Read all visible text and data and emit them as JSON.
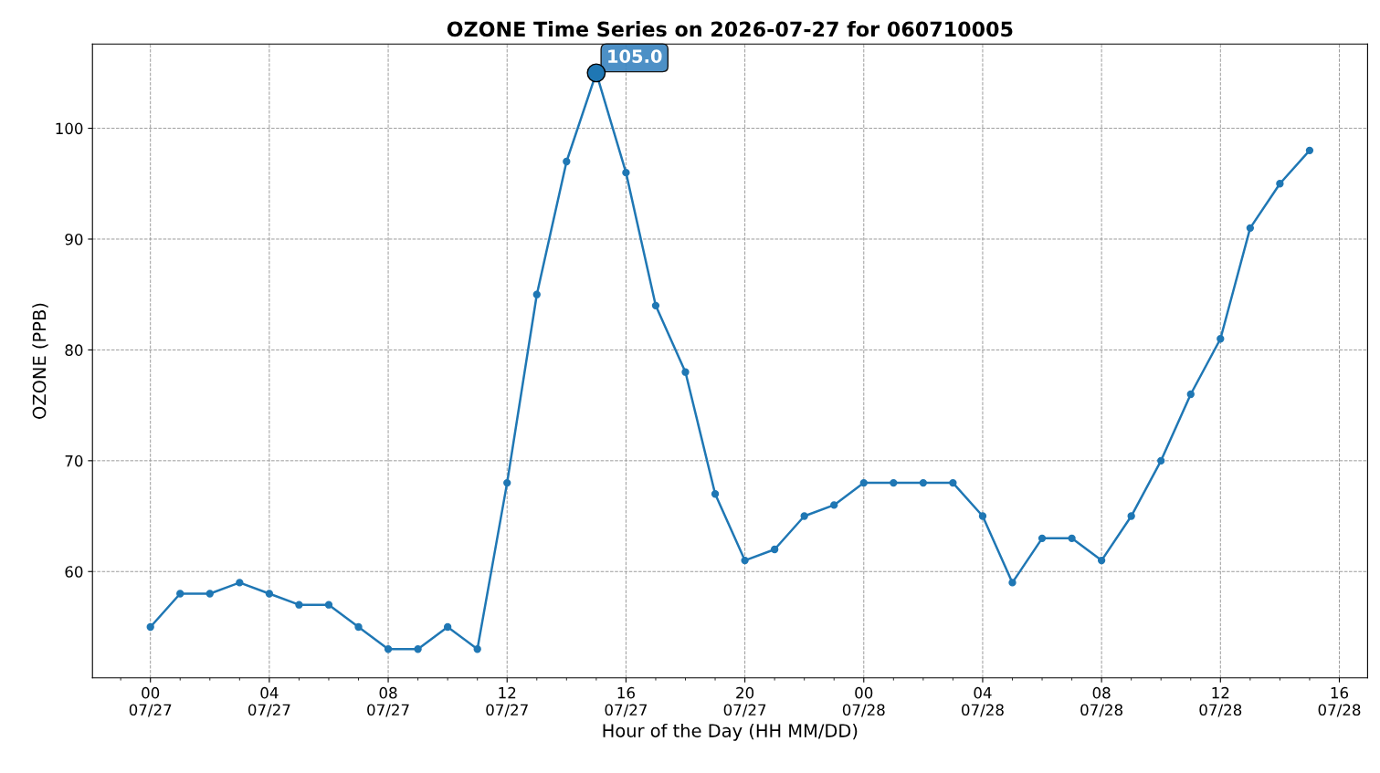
{
  "chart_data": {
    "type": "line",
    "title": "OZONE Time Series on 2026-07-27 for 060710005",
    "xlabel": "Hour of the Day (HH MM/DD)",
    "ylabel": "OZONE (PPB)",
    "x": [
      "2026-07-27T00:00",
      "2026-07-27T01:00",
      "2026-07-27T02:00",
      "2026-07-27T03:00",
      "2026-07-27T04:00",
      "2026-07-27T05:00",
      "2026-07-27T06:00",
      "2026-07-27T07:00",
      "2026-07-27T08:00",
      "2026-07-27T09:00",
      "2026-07-27T10:00",
      "2026-07-27T11:00",
      "2026-07-27T12:00",
      "2026-07-27T13:00",
      "2026-07-27T14:00",
      "2026-07-27T15:00",
      "2026-07-27T16:00",
      "2026-07-27T17:00",
      "2026-07-27T18:00",
      "2026-07-27T19:00",
      "2026-07-27T20:00",
      "2026-07-27T21:00",
      "2026-07-27T22:00",
      "2026-07-27T23:00",
      "2026-07-28T00:00",
      "2026-07-28T01:00",
      "2026-07-28T02:00",
      "2026-07-28T03:00",
      "2026-07-28T04:00",
      "2026-07-28T05:00",
      "2026-07-28T06:00",
      "2026-07-28T07:00",
      "2026-07-28T08:00",
      "2026-07-28T09:00",
      "2026-07-28T10:00",
      "2026-07-28T11:00",
      "2026-07-28T12:00",
      "2026-07-28T13:00",
      "2026-07-28T14:00",
      "2026-07-28T15:00"
    ],
    "series": [
      {
        "color": "#1f77b4",
        "values": [
          55,
          58,
          58,
          59,
          58,
          57,
          57,
          55,
          53,
          53,
          55,
          53,
          68,
          85,
          97,
          105,
          96,
          84,
          78,
          67,
          61,
          62,
          65,
          66,
          68,
          68,
          68,
          68,
          65,
          59,
          63,
          63,
          61,
          65,
          70,
          76,
          81,
          91,
          95,
          98
        ]
      }
    ],
    "annotations": [
      {
        "text": "105.0",
        "x": "2026-07-27T15:00",
        "y": 105
      }
    ],
    "xlim": [
      "2026-07-26T22:03",
      "2026-07-28T16:57"
    ],
    "xticks": [
      {
        "value": "2026-07-27T00:00",
        "label": "00\n07/27"
      },
      {
        "value": "2026-07-27T04:00",
        "label": "04\n07/27"
      },
      {
        "value": "2026-07-27T08:00",
        "label": "08\n07/27"
      },
      {
        "value": "2026-07-27T12:00",
        "label": "12\n07/27"
      },
      {
        "value": "2026-07-27T16:00",
        "label": "16\n07/27"
      },
      {
        "value": "2026-07-27T20:00",
        "label": "20\n07/27"
      },
      {
        "value": "2026-07-28T00:00",
        "label": "00\n07/28"
      },
      {
        "value": "2026-07-28T04:00",
        "label": "04\n07/28"
      },
      {
        "value": "2026-07-28T08:00",
        "label": "08\n07/28"
      },
      {
        "value": "2026-07-28T12:00",
        "label": "12\n07/28"
      },
      {
        "value": "2026-07-28T16:00",
        "label": "16\n07/28"
      }
    ],
    "ylim": [
      50.4,
      107.6
    ],
    "yticks": [
      60,
      70,
      80,
      90,
      100
    ],
    "grid": true,
    "marker": "circle",
    "line_style": "solid"
  }
}
